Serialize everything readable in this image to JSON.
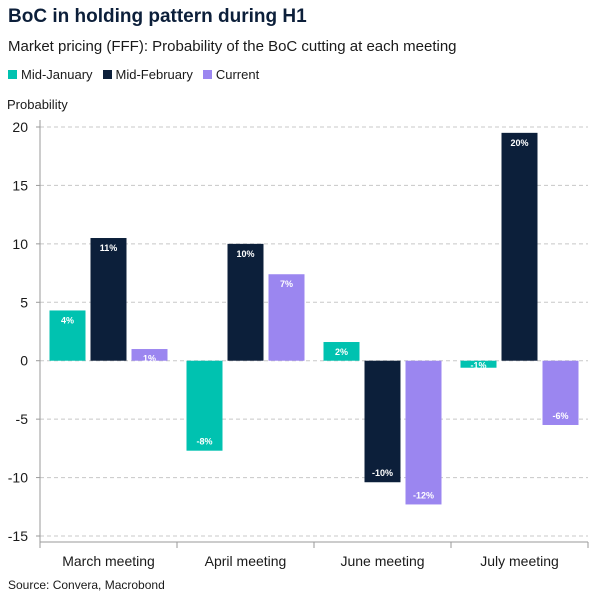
{
  "title": "BoC in holding pattern during H1",
  "subtitle": "Market pricing (FFF): Probability of the BoC cutting at each meeting",
  "source": "Source: Convera, Macrobond",
  "colors": {
    "Mid-January": "#00c2b0",
    "Mid-February": "#0c1f3a",
    "Current": "#9b86f0",
    "grid": "#c8c8c8",
    "axis": "#9a9a9a"
  },
  "chart_data": {
    "type": "bar",
    "ylabel": "Probability",
    "xlabel": "",
    "ylim": [
      -15,
      20
    ],
    "yticks": [
      20,
      15,
      10,
      5,
      0,
      -5,
      -10,
      -15
    ],
    "grid": true,
    "legend_position": "top-left",
    "categories": [
      "March meeting",
      "April meeting",
      "June meeting",
      "July meeting"
    ],
    "series": [
      {
        "name": "Mid-January",
        "values": [
          4.3,
          -7.7,
          1.6,
          -0.6
        ],
        "labels": [
          "4%",
          "-8%",
          "2%",
          "-1%"
        ]
      },
      {
        "name": "Mid-February",
        "values": [
          10.5,
          10.0,
          -10.4,
          19.5
        ],
        "labels": [
          "11%",
          "10%",
          "-10%",
          "20%"
        ]
      },
      {
        "name": "Current",
        "values": [
          1.0,
          7.4,
          -12.3,
          -5.5
        ],
        "labels": [
          "1%",
          "7%",
          "-12%",
          "-6%"
        ]
      }
    ]
  }
}
